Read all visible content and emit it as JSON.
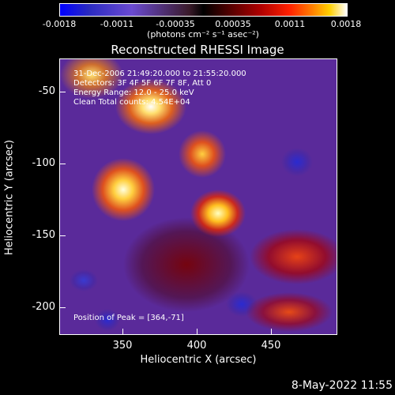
{
  "colorbar": {
    "ticks": [
      "-0.0018",
      "-0.0011",
      "-0.00035",
      "0.00035",
      "0.0011",
      "0.0018"
    ],
    "units": "(photons cm⁻² s⁻¹ asec⁻²)",
    "colors": {
      "low": "#0000ff",
      "mid": "#000000",
      "high": "#ffffff"
    }
  },
  "title": "Reconstructed RHESSI Image",
  "info": {
    "time": "31-Dec-2006 21:49:20.000 to 21:55:20.000",
    "detectors": "Detectors: 3F 4F 5F 6F 7F 8F, Att 0",
    "energy": "Energy Range: 12.0 - 25.0 keV",
    "clean": "Clean     Total counts: 4.54E+04",
    "peak": "Position of Peak = [364,-71]"
  },
  "axes": {
    "xlabel": "Heliocentric X (arcsec)",
    "ylabel": "Heliocentric Y (arcsec)",
    "xticks": [
      "350",
      "400",
      "450"
    ],
    "yticks": [
      "-50",
      "-100",
      "-150",
      "-200"
    ]
  },
  "footer_timestamp": "8-May-2022 11:55"
}
